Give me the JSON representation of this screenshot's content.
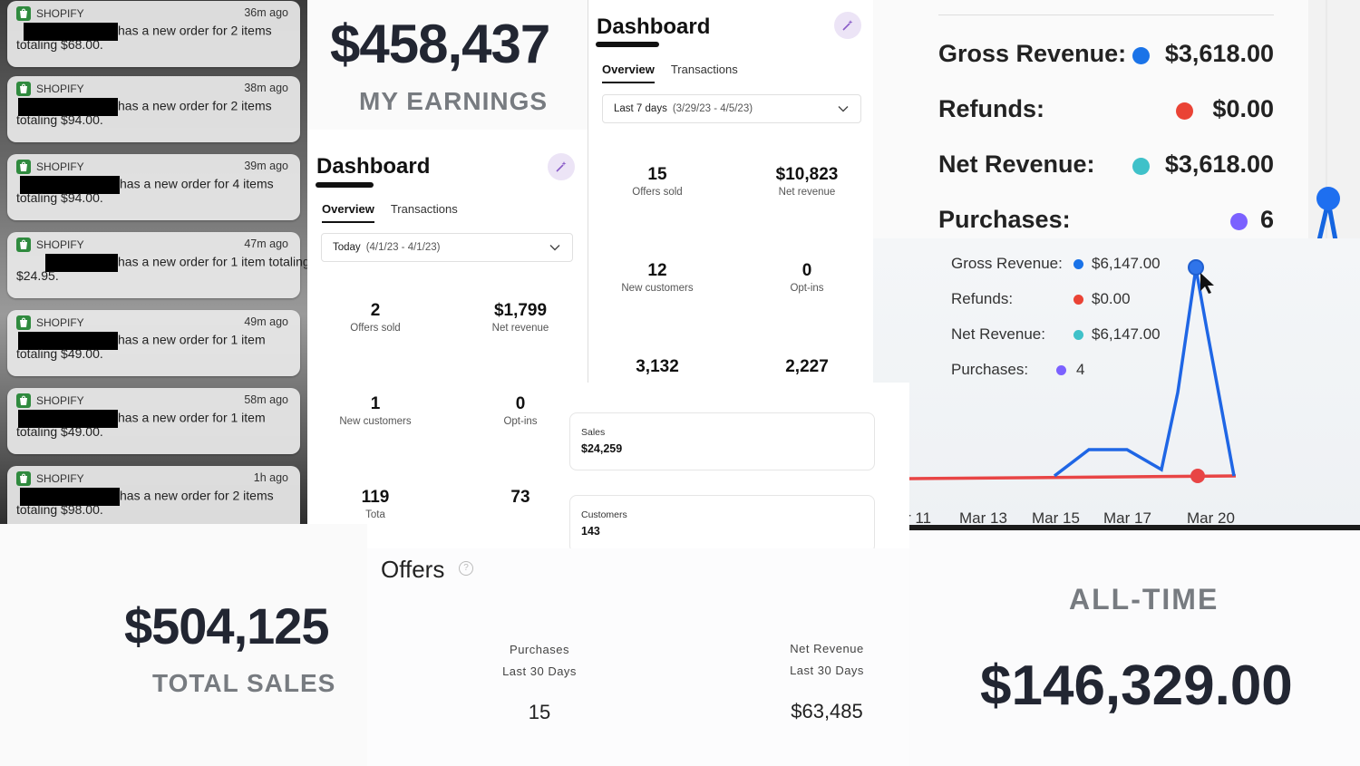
{
  "notifications": [
    {
      "app": "SHOPIFY",
      "time": "36m ago",
      "line1": "has a new order for 2 items",
      "line2": "totaling $68.00."
    },
    {
      "app": "SHOPIFY",
      "time": "38m ago",
      "line1": "has a new order for 2 items",
      "line2": "totaling $94.00."
    },
    {
      "app": "SHOPIFY",
      "time": "39m ago",
      "line1": "has a new order for 4 items",
      "line2": "totaling $94.00."
    },
    {
      "app": "SHOPIFY",
      "time": "47m ago",
      "line1": "has a new order for 1 item totaling",
      "line2": "$24.95."
    },
    {
      "app": "SHOPIFY",
      "time": "49m ago",
      "line1": "has a new order for 1 item",
      "line2": "totaling $49.00."
    },
    {
      "app": "SHOPIFY",
      "time": "58m ago",
      "line1": "has a new order for 1 item",
      "line2": "totaling $49.00."
    },
    {
      "app": "SHOPIFY",
      "time": "1h ago",
      "line1": "has a new order for 2 items",
      "line2": "totaling $98.00."
    }
  ],
  "earnings": {
    "amount": "$458,437",
    "label": "MY EARNINGS"
  },
  "dashboard_a": {
    "title": "Dashboard",
    "tabs": [
      "Overview",
      "Transactions"
    ],
    "date_label": "Today",
    "date_range": "(4/1/23 - 4/1/23)",
    "stats": [
      {
        "value": "2",
        "label": "Offers sold"
      },
      {
        "value": "$1,799",
        "label": "Net revenue"
      },
      {
        "value": "1",
        "label": "New customers"
      },
      {
        "value": "0",
        "label": "Opt-ins"
      },
      {
        "value": "119",
        "label": "Tota"
      },
      {
        "value": "73",
        "label": ""
      }
    ]
  },
  "dashboard_b": {
    "title": "Dashboard",
    "tabs": [
      "Overview",
      "Transactions"
    ],
    "date_label": "Last 7 days",
    "date_range": "(3/29/23 - 4/5/23)",
    "stats": [
      {
        "value": "15",
        "label": "Offers sold"
      },
      {
        "value": "$10,823",
        "label": "Net revenue"
      },
      {
        "value": "12",
        "label": "New customers"
      },
      {
        "value": "0",
        "label": "Opt-ins"
      },
      {
        "value": "3,132",
        "label": ""
      },
      {
        "value": "2,227",
        "label": ""
      }
    ]
  },
  "revenue_summary": {
    "rows": [
      {
        "label": "Gross Revenue:",
        "value": "$3,618.00",
        "color": "#1a73e8"
      },
      {
        "label": "Refunds:",
        "value": "$0.00",
        "color": "#ea4335"
      },
      {
        "label": "Net Revenue:",
        "value": "$3,618.00",
        "color": "#3fc1c9"
      },
      {
        "label": "Purchases:",
        "value": "6",
        "color": "#7b61ff"
      }
    ]
  },
  "revenue_chart": {
    "rows": [
      {
        "label": "Gross Revenue:",
        "value": "$6,147.00",
        "color": "#1a73e8"
      },
      {
        "label": "Refunds:",
        "value": "$0.00",
        "color": "#ea4335"
      },
      {
        "label": "Net Revenue:",
        "value": "$6,147.00",
        "color": "#3fc1c9"
      },
      {
        "label": "Purchases:",
        "value": "4",
        "color": "#7b61ff"
      }
    ],
    "x_ticks": [
      "r 11",
      "Mar 13",
      "Mar 15",
      "Mar 17",
      "Mar 20"
    ]
  },
  "cards": [
    {
      "label": "Sales",
      "value": "$24,259"
    },
    {
      "label": "Customers",
      "value": "143"
    }
  ],
  "total_sales": {
    "amount": "$504,125",
    "label": "TOTAL SALES"
  },
  "offers": {
    "title": "Offers",
    "help": "?",
    "columns": [
      {
        "label1": "Purchases",
        "label2": "Last 30 Days",
        "value": "15"
      },
      {
        "label1": "Net Revenue",
        "label2": "Last 30 Days",
        "value": "$63,485"
      }
    ]
  },
  "alltime": {
    "label": "ALL-TIME",
    "amount": "$146,329.00"
  }
}
